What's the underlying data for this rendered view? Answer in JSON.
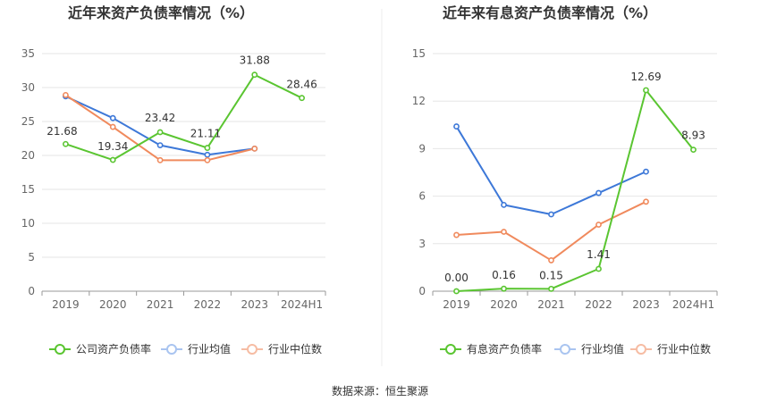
{
  "source": "数据来源：恒生聚源",
  "chart_data": [
    {
      "type": "line",
      "title": "近年来资产负债率情况（%）",
      "categories": [
        "2019",
        "2020",
        "2021",
        "2022",
        "2023",
        "2024H1"
      ],
      "ylim": [
        0,
        35
      ],
      "yticks": [
        "0",
        "5",
        "10",
        "15",
        "20",
        "25",
        "30",
        "35"
      ],
      "grid": true,
      "legend": "bottom",
      "series": [
        {
          "name": "公司资产负债率",
          "color": "#5ac531",
          "values": [
            21.68,
            19.34,
            23.42,
            21.11,
            31.88,
            28.46
          ],
          "labels": [
            "21.68",
            "19.34",
            "23.42",
            "21.11",
            "31.88",
            "28.46"
          ]
        },
        {
          "name": "行业均值",
          "color": "#3d78d8",
          "values": [
            28.7,
            25.5,
            21.5,
            20.1,
            21.0,
            null
          ]
        },
        {
          "name": "行业中位数",
          "color": "#f08a5d",
          "values": [
            28.9,
            24.2,
            19.3,
            19.3,
            21.0,
            null
          ]
        }
      ]
    },
    {
      "type": "line",
      "title": "近年来有息资产负债率情况（%）",
      "categories": [
        "2019",
        "2020",
        "2021",
        "2022",
        "2023",
        "2024H1"
      ],
      "ylim": [
        0,
        15
      ],
      "yticks": [
        "0",
        "3",
        "6",
        "9",
        "12",
        "15"
      ],
      "grid": true,
      "legend": "bottom",
      "series": [
        {
          "name": "有息资产负债率",
          "color": "#5ac531",
          "values": [
            0.0,
            0.16,
            0.15,
            1.41,
            12.69,
            8.93
          ],
          "labels": [
            "0.00",
            "0.16",
            "0.15",
            "1.41",
            "12.69",
            "8.93"
          ]
        },
        {
          "name": "行业均值",
          "color": "#3d78d8",
          "values": [
            10.4,
            5.45,
            4.85,
            6.2,
            7.55,
            null
          ]
        },
        {
          "name": "行业中位数",
          "color": "#f08a5d",
          "values": [
            3.55,
            3.75,
            1.95,
            4.2,
            5.65,
            null
          ]
        }
      ]
    }
  ]
}
